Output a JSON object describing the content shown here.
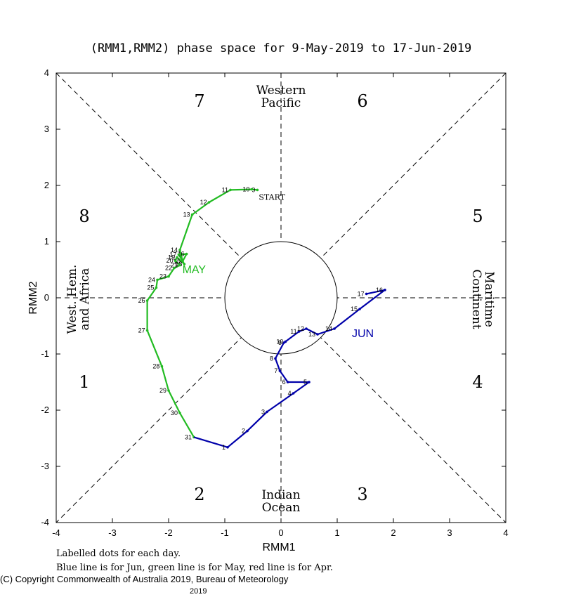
{
  "chart_data": {
    "type": "line",
    "title": "(RMM1,RMM2) phase space for  9-May-2019 to 17-Jun-2019",
    "xlabel": "RMM1",
    "ylabel": "RMM2",
    "xlim": [
      -4,
      4
    ],
    "ylim": [
      -4,
      4
    ],
    "x_ticks": [
      "-4",
      "-3",
      "-2",
      "-1",
      "0",
      "1",
      "2",
      "3",
      "4"
    ],
    "y_ticks": [
      "-4",
      "-3",
      "-2",
      "-1",
      "0",
      "1",
      "2",
      "3",
      "4"
    ],
    "phase_numbers": [
      {
        "label": "1",
        "x": -3.5,
        "y": -1.5
      },
      {
        "label": "2",
        "x": -1.45,
        "y": -3.5
      },
      {
        "label": "3",
        "x": 1.45,
        "y": -3.5
      },
      {
        "label": "4",
        "x": 3.5,
        "y": -1.5
      },
      {
        "label": "5",
        "x": 3.5,
        "y": 1.45
      },
      {
        "label": "6",
        "x": 1.45,
        "y": 3.5
      },
      {
        "label": "7",
        "x": -1.45,
        "y": 3.5
      },
      {
        "label": "8",
        "x": -3.5,
        "y": 1.45
      }
    ],
    "region_labels": {
      "top": [
        "Western",
        "Pacific"
      ],
      "bottom": [
        "Indian",
        "Ocean"
      ],
      "left": [
        "West. Hem.",
        "and Africa"
      ],
      "right": [
        "Maritime",
        "Continent"
      ]
    },
    "start_label": "START",
    "series": [
      {
        "name": "May",
        "color": "#22bb22",
        "month_label": "MAY",
        "points": [
          {
            "d": "9",
            "x": -0.42,
            "y": 1.92
          },
          {
            "d": "10",
            "x": -0.52,
            "y": 1.93
          },
          {
            "d": "11",
            "x": -0.9,
            "y": 1.92
          },
          {
            "d": "12",
            "x": -1.28,
            "y": 1.7
          },
          {
            "d": "13",
            "x": -1.58,
            "y": 1.48
          },
          {
            "d": "14",
            "x": -1.8,
            "y": 0.85
          },
          {
            "d": "15",
            "x": -1.75,
            "y": 0.65
          },
          {
            "d": "16",
            "x": -1.68,
            "y": 0.78
          },
          {
            "d": "17",
            "x": -1.82,
            "y": 0.77
          },
          {
            "d": "18",
            "x": -1.72,
            "y": 0.6
          },
          {
            "d": "19",
            "x": -1.85,
            "y": 0.72
          },
          {
            "d": "20",
            "x": -1.88,
            "y": 0.66
          },
          {
            "d": "21",
            "x": -1.8,
            "y": 0.58
          },
          {
            "d": "22",
            "x": -1.9,
            "y": 0.53
          },
          {
            "d": "23",
            "x": -2.0,
            "y": 0.38
          },
          {
            "d": "24",
            "x": -2.2,
            "y": 0.32
          },
          {
            "d": "25",
            "x": -2.22,
            "y": 0.18
          },
          {
            "d": "26",
            "x": -2.38,
            "y": -0.05
          },
          {
            "d": "27",
            "x": -2.38,
            "y": -0.58
          },
          {
            "d": "28",
            "x": -2.12,
            "y": -1.22
          },
          {
            "d": "29",
            "x": -2.0,
            "y": -1.65
          },
          {
            "d": "30",
            "x": -1.8,
            "y": -2.05
          },
          {
            "d": "31",
            "x": -1.55,
            "y": -2.48
          }
        ]
      },
      {
        "name": "Jun",
        "color": "#0000aa",
        "month_label": "JUN",
        "points": [
          {
            "d": "1",
            "x": -0.95,
            "y": -2.66
          },
          {
            "d": "2",
            "x": -0.6,
            "y": -2.37
          },
          {
            "d": "3",
            "x": -0.25,
            "y": -2.03
          },
          {
            "d": "4",
            "x": 0.22,
            "y": -1.7
          },
          {
            "d": "5",
            "x": 0.5,
            "y": -1.5
          },
          {
            "d": "6",
            "x": 0.12,
            "y": -1.5
          },
          {
            "d": "7",
            "x": -0.02,
            "y": -1.3
          },
          {
            "d": "8",
            "x": -0.1,
            "y": -1.08
          },
          {
            "d": "9",
            "x": 0.05,
            "y": -0.8
          },
          {
            "d": "10",
            "x": 0.08,
            "y": -0.78
          },
          {
            "d": "11",
            "x": 0.32,
            "y": -0.6
          },
          {
            "d": "12",
            "x": 0.45,
            "y": -0.55
          },
          {
            "d": "13",
            "x": 0.65,
            "y": -0.65
          },
          {
            "d": "14",
            "x": 0.95,
            "y": -0.55
          },
          {
            "d": "15",
            "x": 1.4,
            "y": -0.2
          },
          {
            "d": "16",
            "x": 1.85,
            "y": 0.14
          },
          {
            "d": "17",
            "x": 1.52,
            "y": 0.07
          }
        ]
      }
    ]
  },
  "footer": {
    "line1": "Labelled dots for each day.",
    "line2": "Blue line is for Jun, green line is for May, red line is for Apr.",
    "copyright": "(C) Copyright Commonwealth of Australia 2019, Bureau of Meteorology",
    "year": "2019"
  }
}
